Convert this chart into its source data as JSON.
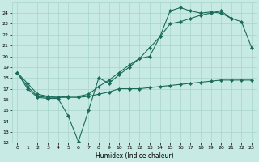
{
  "xlabel": "Humidex (Indice chaleur)",
  "xlim": [
    -0.5,
    23.5
  ],
  "ylim": [
    12,
    25
  ],
  "yticks": [
    12,
    13,
    14,
    15,
    16,
    17,
    18,
    19,
    20,
    21,
    22,
    23,
    24
  ],
  "xticks": [
    0,
    1,
    2,
    3,
    4,
    5,
    6,
    7,
    8,
    9,
    10,
    11,
    12,
    13,
    14,
    15,
    16,
    17,
    18,
    19,
    20,
    21,
    22,
    23
  ],
  "background_color": "#c8eae4",
  "grid_color": "#a8d4cc",
  "line_color": "#1a6b5a",
  "lines": [
    {
      "x": [
        0,
        1,
        2,
        3,
        4,
        5,
        6,
        7,
        8,
        9,
        10,
        11,
        12,
        13,
        14,
        15,
        16,
        17,
        18,
        19,
        20,
        21
      ],
      "y": [
        18.5,
        17.0,
        16.2,
        16.1,
        16.1,
        14.5,
        12.1,
        15.0,
        18.0,
        17.5,
        18.3,
        19.0,
        19.8,
        20.0,
        21.8,
        24.2,
        24.5,
        24.2,
        24.0,
        24.1,
        24.0,
        23.5
      ]
    },
    {
      "x": [
        0,
        1,
        2,
        3,
        4,
        5,
        6,
        7,
        8,
        9,
        10,
        11,
        12,
        13,
        14,
        15,
        16,
        17,
        18,
        19,
        20,
        21,
        22,
        23
      ],
      "y": [
        18.5,
        17.2,
        16.3,
        16.2,
        16.2,
        16.2,
        16.2,
        16.3,
        16.5,
        16.7,
        17.0,
        17.0,
        17.0,
        17.1,
        17.2,
        17.3,
        17.4,
        17.5,
        17.6,
        17.7,
        17.8,
        17.8,
        17.8,
        17.8
      ]
    },
    {
      "x": [
        0,
        1,
        2,
        3,
        4,
        5,
        6,
        7,
        8,
        9,
        10,
        11,
        12,
        13,
        14,
        15,
        16,
        17,
        18,
        19,
        20,
        21,
        22,
        23
      ],
      "y": [
        18.5,
        17.5,
        16.5,
        16.3,
        16.2,
        16.3,
        16.3,
        16.5,
        17.2,
        17.8,
        18.5,
        19.2,
        19.8,
        20.8,
        21.8,
        23.0,
        23.2,
        23.5,
        23.8,
        24.0,
        24.2,
        23.5,
        23.2,
        20.8
      ]
    }
  ]
}
